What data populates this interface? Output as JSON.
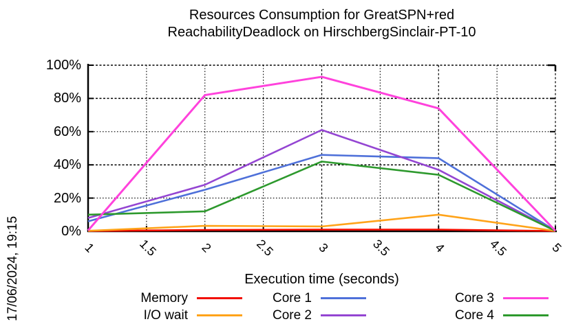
{
  "timestamp": "17/06/2024, 19:15",
  "title_line1": "Resources Consumption for GreatSPN+red",
  "title_line2": "ReachabilityDeadlock on HirschbergSinclair-PT-10",
  "chart_data": {
    "type": "line",
    "title": "Resources Consumption for GreatSPN+red ReachabilityDeadlock on HirschbergSinclair-PT-10",
    "xlabel": "Execution time (seconds)",
    "ylabel": "",
    "xlim": [
      1,
      5
    ],
    "ylim": [
      0,
      100
    ],
    "grid": true,
    "legend_position": "bottom",
    "x": [
      1,
      2,
      3,
      4,
      5
    ],
    "x_tick_values": [
      1,
      1.5,
      2,
      2.5,
      3,
      3.5,
      4,
      4.5,
      5
    ],
    "x_tick_labels": [
      "1",
      "1.5",
      "2",
      "2.5",
      "3",
      "3.5",
      "4",
      "4.5",
      "5"
    ],
    "y_tick_values": [
      0,
      20,
      40,
      60,
      80,
      100
    ],
    "y_tick_labels": [
      "0%",
      "20%",
      "40%",
      "60%",
      "80%",
      "100%"
    ],
    "series": [
      {
        "name": "Memory",
        "color": "#f20d00",
        "values": [
          0.2,
          0.8,
          1.0,
          1.0,
          0.2
        ]
      },
      {
        "name": "I/O wait",
        "color": "#ffa319",
        "values": [
          0.3,
          3.3,
          2.9,
          10.0,
          0.2
        ]
      },
      {
        "name": "Core 1",
        "color": "#4e70d9",
        "values": [
          6,
          25,
          46,
          44,
          0.3
        ]
      },
      {
        "name": "Core 2",
        "color": "#9445d2",
        "values": [
          8,
          28,
          61,
          37,
          0.3
        ]
      },
      {
        "name": "Core 3",
        "color": "#ff42dc",
        "values": [
          0.5,
          82,
          93,
          74,
          0.3
        ]
      },
      {
        "name": "Core 4",
        "color": "#2d992d",
        "values": [
          10,
          12,
          42,
          34,
          0.3
        ]
      }
    ],
    "draw_order": [
      0,
      1,
      2,
      3,
      5,
      4
    ],
    "legend_columns": [
      [
        0,
        1
      ],
      [
        2,
        3
      ],
      [
        4,
        5
      ]
    ]
  }
}
